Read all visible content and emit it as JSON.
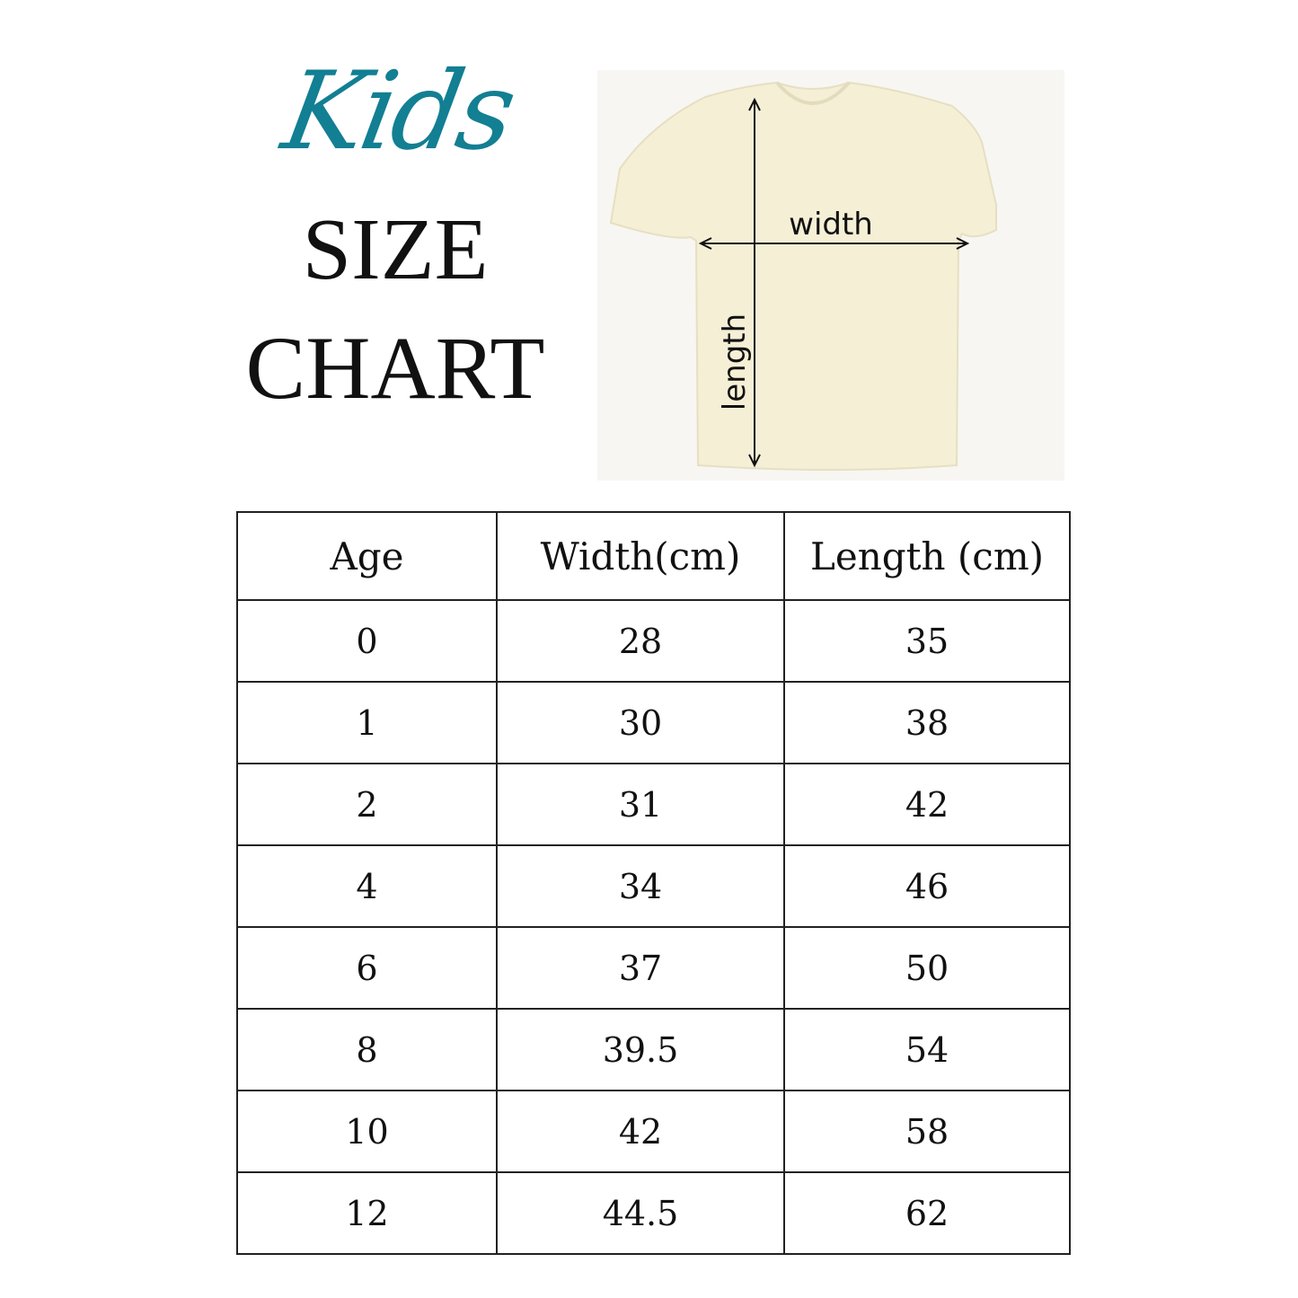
{
  "header": {
    "script_title": "Kids",
    "title_line1": "SIZE",
    "title_line2": "CHART"
  },
  "diagram": {
    "width_label": "width",
    "length_label": "length",
    "shirt_color": "#f5efd6"
  },
  "table": {
    "columns": [
      "Age",
      "Width(cm)",
      "Length (cm)"
    ],
    "rows": [
      [
        "0",
        "28",
        "35"
      ],
      [
        "1",
        "30",
        "38"
      ],
      [
        "2",
        "31",
        "42"
      ],
      [
        "4",
        "34",
        "46"
      ],
      [
        "6",
        "37",
        "50"
      ],
      [
        "8",
        "39.5",
        "54"
      ],
      [
        "10",
        "42",
        "58"
      ],
      [
        "12",
        "44.5",
        "62"
      ]
    ]
  },
  "colors": {
    "accent": "#127f93"
  }
}
